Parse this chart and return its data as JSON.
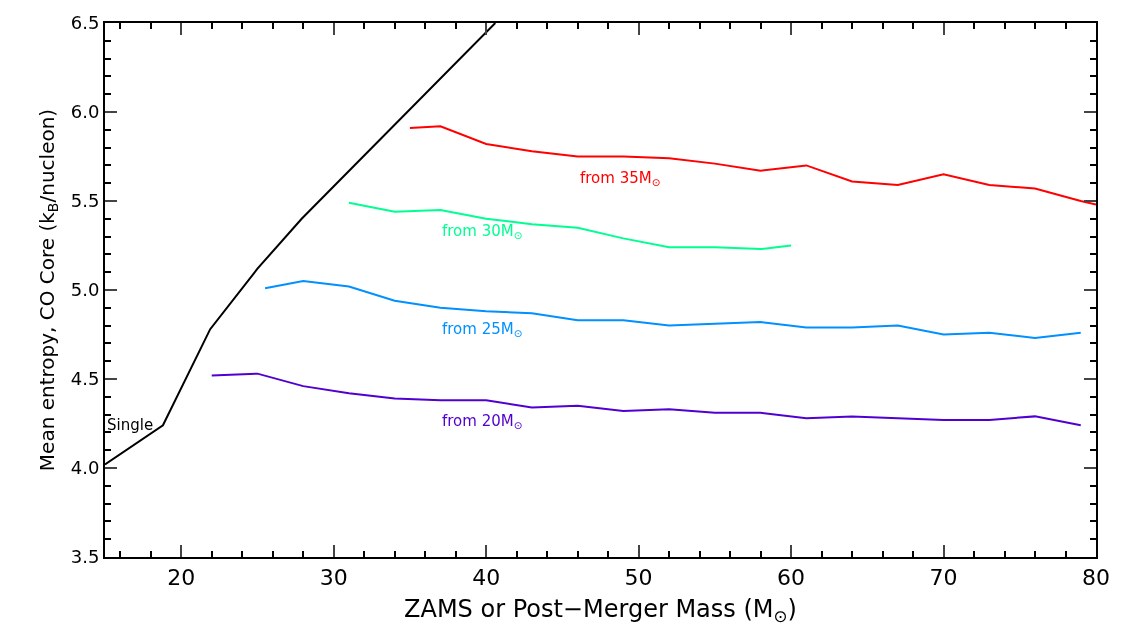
{
  "chart_data": {
    "type": "line",
    "xlabel": "ZAMS or Post−Merger Mass (M$_{⊙}$)",
    "ylabel": "Mean entropy, CO Core (k$_{B}$/nucleon)",
    "series": [
      {
        "name": "Single",
        "color": "#000000",
        "x": [
          15,
          18.8,
          21.9,
          25,
          27.9,
          40.6
        ],
        "values": [
          4.02,
          4.24,
          4.78,
          5.12,
          5.4,
          6.5
        ]
      },
      {
        "name": "from 35M$_{⊙}$",
        "color": "#ff0000",
        "x": [
          35,
          37,
          40,
          43,
          46,
          49,
          52,
          55,
          58,
          61,
          64,
          67,
          70,
          73,
          76,
          79,
          80
        ],
        "values": [
          5.91,
          5.92,
          5.82,
          5.78,
          5.75,
          5.75,
          5.74,
          5.71,
          5.67,
          5.7,
          5.61,
          5.59,
          5.65,
          5.59,
          5.57,
          5.5,
          5.48
        ]
      },
      {
        "name": "from 30M$_{⊙}$",
        "color": "#00ff90",
        "x": [
          31,
          34,
          37,
          40,
          43,
          46,
          49,
          52,
          55,
          58,
          60
        ],
        "values": [
          5.49,
          5.44,
          5.45,
          5.4,
          5.37,
          5.35,
          5.29,
          5.24,
          5.24,
          5.23,
          5.25
        ]
      },
      {
        "name": "from 25M$_{⊙}$",
        "color": "#0090ff",
        "x": [
          25.5,
          28,
          31,
          34,
          37,
          40,
          43,
          46,
          49,
          52,
          55,
          58,
          61,
          64,
          67,
          70,
          73,
          76,
          79
        ],
        "values": [
          5.01,
          5.05,
          5.02,
          4.94,
          4.9,
          4.88,
          4.87,
          4.83,
          4.83,
          4.8,
          4.81,
          4.82,
          4.79,
          4.79,
          4.8,
          4.75,
          4.76,
          4.73,
          4.76
        ]
      },
      {
        "name": "from 20M$_{⊙}$",
        "color": "#5000d0",
        "x": [
          22,
          25,
          28,
          31,
          34,
          37,
          40,
          43,
          46,
          49,
          52,
          55,
          58,
          61,
          64,
          67,
          70,
          73,
          76,
          79
        ],
        "values": [
          4.52,
          4.53,
          4.46,
          4.42,
          4.39,
          4.38,
          4.38,
          4.34,
          4.35,
          4.32,
          4.33,
          4.31,
          4.31,
          4.28,
          4.29,
          4.28,
          4.27,
          4.27,
          4.29,
          4.24
        ]
      }
    ],
    "xlim": [
      15,
      80
    ],
    "xticks": [
      20,
      30,
      40,
      50,
      60,
      70,
      80
    ],
    "ylim": [
      3.5,
      6.5
    ],
    "yticks": [
      3.5,
      {
        "value": 4,
        "label": "4.0"
      },
      4.5,
      {
        "value": 5,
        "label": "5.0"
      },
      5.5,
      {
        "value": 6,
        "label": "6.0"
      },
      6.5
    ],
    "grid": false,
    "legend": false,
    "marker": "none",
    "line_style": "solid"
  }
}
